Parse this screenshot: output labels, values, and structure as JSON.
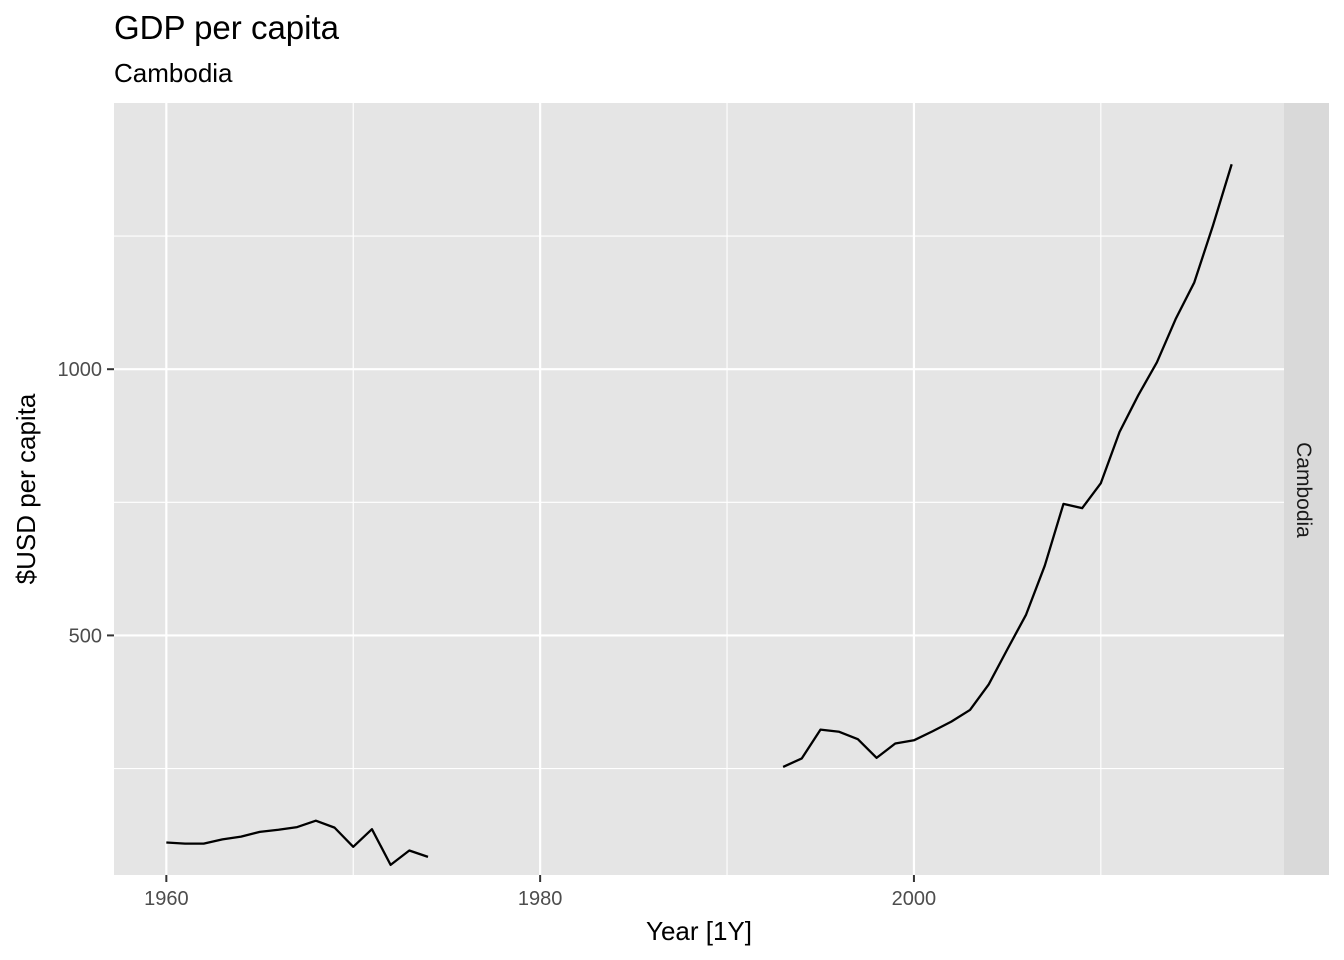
{
  "chart_data": {
    "type": "line",
    "title": "GDP per capita",
    "subtitle": "Cambodia",
    "xlabel": "Year [1Y]",
    "ylabel": "$USD per capita",
    "facet_label": "Cambodia",
    "xlim": [
      1957.2,
      2019.8
    ],
    "ylim": [
      50,
      1500
    ],
    "x_ticks": [
      1960,
      1980,
      2000
    ],
    "x_tick_labels": [
      "1960",
      "1980",
      "2000"
    ],
    "x_minor_ticks": [
      1970,
      1990,
      2010
    ],
    "y_ticks": [
      500,
      1000
    ],
    "y_tick_labels": [
      "500",
      "1000"
    ],
    "y_minor_ticks": [
      250,
      750,
      1250
    ],
    "grid": true,
    "panel_background": "#e5e5e5",
    "grid_color": "#ffffff",
    "strip_background": "#d9d9d9",
    "line_color": "#000000",
    "series": [
      {
        "segments": [
          {
            "x": [
              1960,
              1961,
              1962,
              1963,
              1964,
              1965,
              1966,
              1967,
              1968,
              1969,
              1970,
              1971,
              1972,
              1973,
              1974
            ],
            "y": [
              111,
              109,
              109,
              117,
              122,
              131,
              135,
              140,
              152,
              139,
              103,
              136,
              69,
              96,
              84
            ]
          },
          {
            "x": [
              1993,
              1994,
              1995,
              1996,
              1997,
              1998,
              1999,
              2000,
              2001,
              2002,
              2003,
              2004,
              2005,
              2006,
              2007,
              2008,
              2009,
              2010,
              2011,
              2012,
              2013,
              2014,
              2015,
              2016,
              2017
            ],
            "y": [
              253,
              269,
              323,
              319,
              305,
              270,
              297,
              303,
              320,
              338,
              360,
              408,
              474,
              539,
              631,
              747,
              739,
              786,
              882,
              951,
              1013,
              1094,
              1163,
              1270,
              1385
            ]
          }
        ]
      }
    ]
  }
}
